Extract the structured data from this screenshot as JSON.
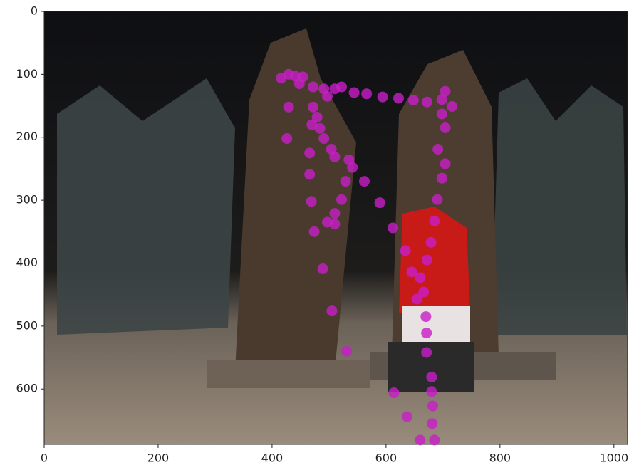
{
  "chart_data": {
    "type": "scatter",
    "x": [
      416,
      429,
      441,
      454,
      448,
      472,
      491,
      510,
      522,
      544,
      566,
      594,
      622,
      648,
      672,
      698,
      704,
      716,
      698,
      704,
      691,
      704,
      698,
      690,
      685,
      679,
      672,
      660,
      666,
      670,
      671,
      671,
      680,
      680,
      682,
      681,
      660,
      685,
      614,
      637,
      429,
      426,
      472,
      479,
      484,
      491,
      504,
      510,
      535,
      541,
      529,
      522,
      510,
      497,
      510,
      562,
      589,
      612,
      470,
      466,
      466,
      469,
      474,
      489,
      505,
      531,
      634,
      645,
      654,
      497
    ],
    "y": [
      106,
      100,
      103,
      104,
      115,
      120,
      123,
      123,
      120,
      129,
      131,
      136,
      138,
      141,
      144,
      140,
      127,
      151,
      163,
      185,
      219,
      242,
      265,
      299,
      333,
      367,
      395,
      423,
      446,
      485,
      511,
      542,
      581,
      604,
      627,
      655,
      681,
      681,
      606,
      644,
      152,
      202,
      152,
      168,
      186,
      202,
      219,
      231,
      236,
      248,
      270,
      299,
      321,
      335,
      338,
      270,
      304,
      344,
      180,
      225,
      259,
      302,
      350,
      409,
      476,
      540,
      380,
      414,
      457,
      135
    ],
    "color": "#c81ec8",
    "xlim": [
      0,
      1024
    ],
    "ylim": [
      688,
      0
    ],
    "xticks": [
      0,
      200,
      400,
      600,
      800,
      1000
    ],
    "yticks": [
      0,
      100,
      200,
      300,
      400,
      500,
      600
    ]
  }
}
